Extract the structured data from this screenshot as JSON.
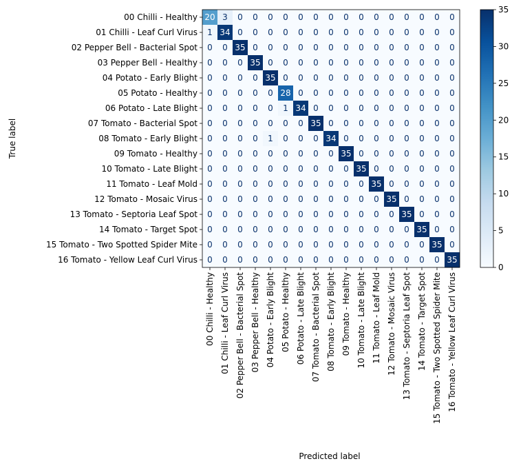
{
  "chart_data": {
    "type": "heatmap",
    "xlabel": "Predicted label",
    "ylabel": "True label",
    "labels": [
      "00 Chilli - Healthy",
      "01 Chilli - Leaf Curl Virus",
      "02 Pepper Bell - Bacterial Spot",
      "03 Pepper Bell - Healthy",
      "04 Potato - Early Blight",
      "05 Potato - Healthy",
      "06 Potato - Late Blight",
      "07 Tomato - Bacterial Spot",
      "08 Tomato - Early Blight",
      "09 Tomato - Healthy",
      "10 Tomato - Late Blight",
      "11 Tomato - Leaf Mold",
      "12 Tomato - Mosaic Virus",
      "13 Tomato - Septoria Leaf Spot",
      "14 Tomato - Target Spot",
      "15 Tomato - Two Spotted Spider Mite",
      "16 Tomato - Yellow Leaf Curl Virus"
    ],
    "matrix": [
      [
        20,
        3,
        0,
        0,
        0,
        0,
        0,
        0,
        0,
        0,
        0,
        0,
        0,
        0,
        0,
        0,
        0
      ],
      [
        1,
        34,
        0,
        0,
        0,
        0,
        0,
        0,
        0,
        0,
        0,
        0,
        0,
        0,
        0,
        0,
        0
      ],
      [
        0,
        0,
        35,
        0,
        0,
        0,
        0,
        0,
        0,
        0,
        0,
        0,
        0,
        0,
        0,
        0,
        0
      ],
      [
        0,
        0,
        0,
        35,
        0,
        0,
        0,
        0,
        0,
        0,
        0,
        0,
        0,
        0,
        0,
        0,
        0
      ],
      [
        0,
        0,
        0,
        0,
        35,
        0,
        0,
        0,
        0,
        0,
        0,
        0,
        0,
        0,
        0,
        0,
        0
      ],
      [
        0,
        0,
        0,
        0,
        0,
        28,
        0,
        0,
        0,
        0,
        0,
        0,
        0,
        0,
        0,
        0,
        0
      ],
      [
        0,
        0,
        0,
        0,
        0,
        1,
        34,
        0,
        0,
        0,
        0,
        0,
        0,
        0,
        0,
        0,
        0
      ],
      [
        0,
        0,
        0,
        0,
        0,
        0,
        0,
        35,
        0,
        0,
        0,
        0,
        0,
        0,
        0,
        0,
        0
      ],
      [
        0,
        0,
        0,
        0,
        1,
        0,
        0,
        0,
        34,
        0,
        0,
        0,
        0,
        0,
        0,
        0,
        0
      ],
      [
        0,
        0,
        0,
        0,
        0,
        0,
        0,
        0,
        0,
        35,
        0,
        0,
        0,
        0,
        0,
        0,
        0
      ],
      [
        0,
        0,
        0,
        0,
        0,
        0,
        0,
        0,
        0,
        0,
        35,
        0,
        0,
        0,
        0,
        0,
        0
      ],
      [
        0,
        0,
        0,
        0,
        0,
        0,
        0,
        0,
        0,
        0,
        0,
        35,
        0,
        0,
        0,
        0,
        0
      ],
      [
        0,
        0,
        0,
        0,
        0,
        0,
        0,
        0,
        0,
        0,
        0,
        0,
        35,
        0,
        0,
        0,
        0
      ],
      [
        0,
        0,
        0,
        0,
        0,
        0,
        0,
        0,
        0,
        0,
        0,
        0,
        0,
        35,
        0,
        0,
        0
      ],
      [
        0,
        0,
        0,
        0,
        0,
        0,
        0,
        0,
        0,
        0,
        0,
        0,
        0,
        0,
        35,
        0,
        0
      ],
      [
        0,
        0,
        0,
        0,
        0,
        0,
        0,
        0,
        0,
        0,
        0,
        0,
        0,
        0,
        0,
        35,
        0
      ],
      [
        0,
        0,
        0,
        0,
        0,
        0,
        0,
        0,
        0,
        0,
        0,
        0,
        0,
        0,
        0,
        0,
        35
      ]
    ],
    "vmin": 0,
    "vmax": 35,
    "colormap": "Blues",
    "colorbar_ticks": [
      0,
      5,
      10,
      15,
      20,
      25,
      30,
      35
    ],
    "grid": false
  }
}
